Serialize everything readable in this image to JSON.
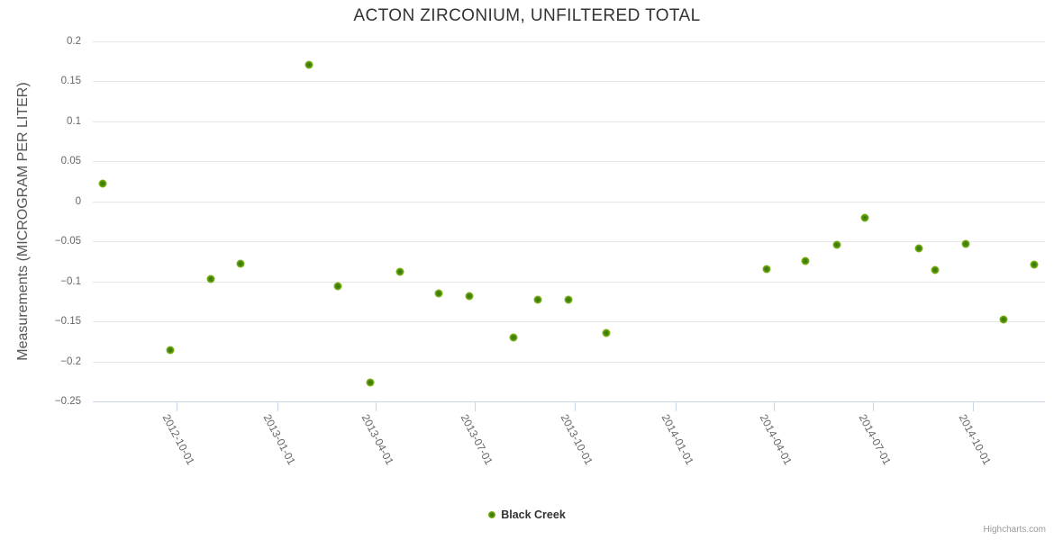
{
  "page": {
    "credits": "Highcharts.com"
  },
  "chart_data": {
    "type": "scatter",
    "title": "ACTON ZIRCONIUM, UNFILTERED TOTAL",
    "xlabel": "",
    "ylabel": "Measurements (MICROGRAM PER LITER)",
    "legend_position": "bottom-center",
    "grid": "horizontal",
    "ylim": [
      -0.25,
      0.2
    ],
    "y_ticks": [
      0.2,
      0.15,
      0.1,
      0.05,
      0,
      -0.05,
      -0.1,
      -0.15,
      -0.2,
      -0.25
    ],
    "xlim": [
      "2012-07-16",
      "2014-12-06"
    ],
    "x_ticks": [
      "2012-10-01",
      "2013-01-01",
      "2013-04-01",
      "2013-07-01",
      "2013-10-01",
      "2014-01-01",
      "2014-04-01",
      "2014-07-01",
      "2014-10-01"
    ],
    "colors": {
      "series": "#7cb31a",
      "marker_core": "#3c7a04",
      "marker_edge": "#8cc42e",
      "grid": "#e6e6e6",
      "axis_line": "#ccd6eb",
      "title_text": "#333333",
      "axis_text": "#666666",
      "credits_text": "#999999"
    },
    "series": [
      {
        "name": "Black Creek",
        "points": [
          {
            "date": "2012-07-25",
            "value": 0.022
          },
          {
            "date": "2012-09-25",
            "value": -0.186
          },
          {
            "date": "2012-11-01",
            "value": -0.097
          },
          {
            "date": "2012-11-28",
            "value": -0.078
          },
          {
            "date": "2013-01-30",
            "value": 0.171
          },
          {
            "date": "2013-02-26",
            "value": -0.106
          },
          {
            "date": "2013-03-27",
            "value": -0.226
          },
          {
            "date": "2013-04-24",
            "value": -0.088
          },
          {
            "date": "2013-05-29",
            "value": -0.115
          },
          {
            "date": "2013-06-26",
            "value": -0.118
          },
          {
            "date": "2013-08-06",
            "value": -0.17
          },
          {
            "date": "2013-08-28",
            "value": -0.123
          },
          {
            "date": "2013-09-25",
            "value": -0.123
          },
          {
            "date": "2013-10-30",
            "value": -0.165
          },
          {
            "date": "2014-03-26",
            "value": -0.085
          },
          {
            "date": "2014-04-30",
            "value": -0.074
          },
          {
            "date": "2014-05-29",
            "value": -0.054
          },
          {
            "date": "2014-06-24",
            "value": -0.02
          },
          {
            "date": "2014-08-12",
            "value": -0.059
          },
          {
            "date": "2014-08-27",
            "value": -0.086
          },
          {
            "date": "2014-09-24",
            "value": -0.053
          },
          {
            "date": "2014-10-29",
            "value": -0.148
          },
          {
            "date": "2014-11-26",
            "value": -0.079
          }
        ]
      }
    ]
  }
}
